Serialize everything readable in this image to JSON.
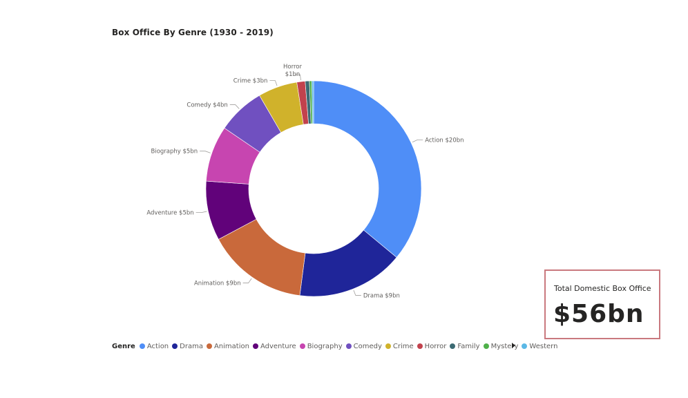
{
  "chart_data": {
    "type": "pie",
    "title": "Box Office By Genre (1930 - 2019)",
    "legend_title": "Genre",
    "legend_position": "bottom-left",
    "unit": "$bn",
    "slices": [
      {
        "name": "Action",
        "value": 20.2,
        "label": "Action $20bn",
        "color": "#4f8ef7"
      },
      {
        "name": "Drama",
        "value": 9.0,
        "label": "Drama $9bn",
        "color": "#1f2599"
      },
      {
        "name": "Animation",
        "value": 8.5,
        "label": "Animation $9bn",
        "color": "#c9693b"
      },
      {
        "name": "Adventure",
        "value": 5.0,
        "label": "Adventure $5bn",
        "color": "#61027a"
      },
      {
        "name": "Biography",
        "value": 4.7,
        "label": "Biography $5bn",
        "color": "#c745b0"
      },
      {
        "name": "Comedy",
        "value": 4.0,
        "label": "Comedy $4bn",
        "color": "#7050c0"
      },
      {
        "name": "Crime",
        "value": 3.3,
        "label": "Crime $3bn",
        "color": "#d0b22b"
      },
      {
        "name": "Horror",
        "value": 0.7,
        "label": "Horror $1bn",
        "color": "#c2424d"
      },
      {
        "name": "Family",
        "value": 0.35,
        "label": "",
        "color": "#3c6a73"
      },
      {
        "name": "Mystery",
        "value": 0.2,
        "label": "",
        "color": "#4fb04a"
      },
      {
        "name": "Western",
        "value": 0.15,
        "label": "",
        "color": "#5bb8e6"
      }
    ]
  },
  "kpi": {
    "label": "Total Domestic Box Office",
    "value": "$56bn"
  }
}
